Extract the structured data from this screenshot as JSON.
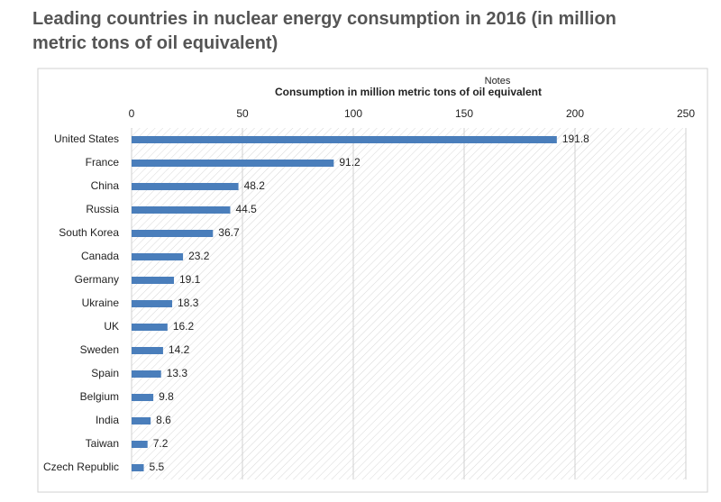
{
  "chart_data": {
    "type": "bar",
    "orientation": "horizontal",
    "title": "Leading countries in nuclear energy consumption in 2016 (in million metric tons of oil equivalent)",
    "annotation": "Notes",
    "xlabel": "Consumption in million metric tons of oil equivalent",
    "categories": [
      "United States",
      "France",
      "China",
      "Russia",
      "South Korea",
      "Canada",
      "Germany",
      "Ukraine",
      "UK",
      "Sweden",
      "Spain",
      "Belgium",
      "India",
      "Taiwan",
      "Czech Republic"
    ],
    "values": [
      191.8,
      91.2,
      48.2,
      44.5,
      36.7,
      23.2,
      19.1,
      18.3,
      16.2,
      14.2,
      13.3,
      9.8,
      8.6,
      7.2,
      5.5
    ],
    "color": "#4a7ebb",
    "xlim": [
      0,
      250
    ],
    "xticks": [
      0,
      50,
      100,
      150,
      200,
      250
    ],
    "grid": true
  }
}
